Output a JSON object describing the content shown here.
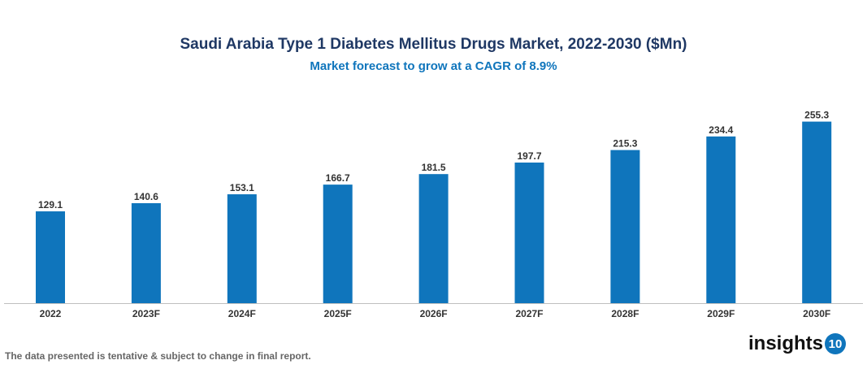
{
  "chart_data": {
    "type": "bar",
    "title": "Saudi Arabia Type 1 Diabetes Mellitus Drugs Market, 2022-2030 ($Mn)",
    "subtitle": "Market forecast to grow at a CAGR of 8.9%",
    "categories": [
      "2022",
      "2023F",
      "2024F",
      "2025F",
      "2026F",
      "2027F",
      "2028F",
      "2029F",
      "2030F"
    ],
    "values": [
      129.1,
      140.6,
      153.1,
      166.7,
      181.5,
      197.7,
      215.3,
      234.4,
      255.3
    ],
    "ylim": [
      0,
      280
    ],
    "grid": false,
    "bar_color": "#0f75bc"
  },
  "footer": "The data presented is tentative & subject to change in final report.",
  "logo": {
    "text": "insights",
    "badge": "10"
  }
}
